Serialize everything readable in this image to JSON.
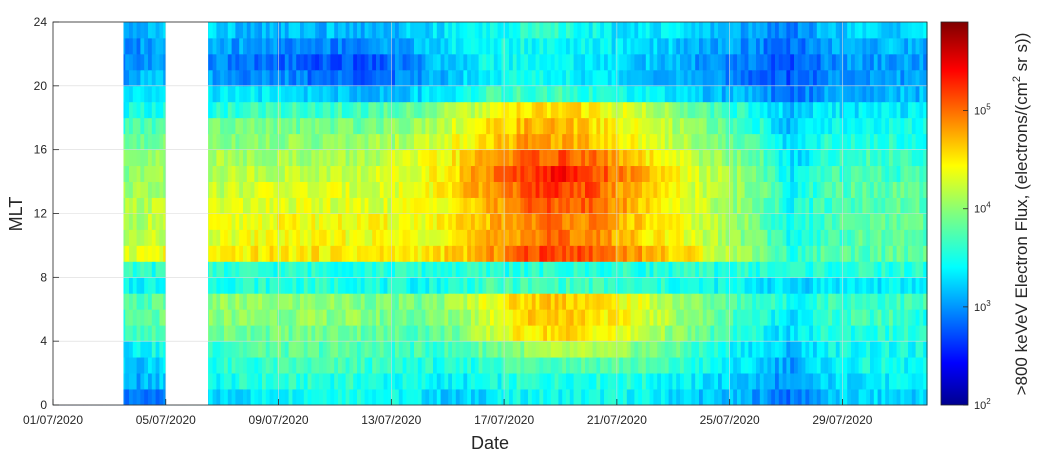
{
  "chart_data": {
    "type": "heatmap",
    "xlabel": "Date",
    "ylabel": "MLT",
    "colorbar_label": ">800 keVeV Electron Flux, (electrons/(cm",
    "colorbar_label_sup": "2",
    "colorbar_label_end": " sr s))",
    "colorscale": "jet",
    "log_color_scale": true,
    "clim": [
      100,
      800000
    ],
    "colorbar_ticks": [
      {
        "base": "10",
        "exp": "2",
        "value": 100
      },
      {
        "base": "10",
        "exp": "3",
        "value": 1000
      },
      {
        "base": "10",
        "exp": "4",
        "value": 10000
      },
      {
        "base": "10",
        "exp": "5",
        "value": 100000
      }
    ],
    "x_start_day": 1,
    "x_end_day": 32,
    "xlim_days": [
      1,
      32
    ],
    "x_ticks": [
      {
        "label": "01/07/2020",
        "day": 1
      },
      {
        "label": "05/07/2020",
        "day": 5
      },
      {
        "label": "09/07/2020",
        "day": 9
      },
      {
        "label": "13/07/2020",
        "day": 13
      },
      {
        "label": "17/07/2020",
        "day": 17
      },
      {
        "label": "21/07/2020",
        "day": 21
      },
      {
        "label": "25/07/2020",
        "day": 25
      },
      {
        "label": "29/07/2020",
        "day": 29
      }
    ],
    "ylim": [
      0,
      24
    ],
    "y_ticks": [
      {
        "label": "0",
        "value": 0
      },
      {
        "label": "4",
        "value": 4
      },
      {
        "label": "8",
        "value": 8
      },
      {
        "label": "12",
        "value": 12
      },
      {
        "label": "16",
        "value": 16
      },
      {
        "label": "20",
        "value": 20
      },
      {
        "label": "24",
        "value": 24
      }
    ],
    "grid": true,
    "mlt_bins": 24,
    "mlt_rows": [
      {
        "mlt": 0.5,
        "log_flux": [
          2.8,
          2.8,
          2.9,
          3.0,
          3.2,
          3.3,
          3.4,
          3.5,
          3.6,
          3.6,
          3.5,
          3.4,
          3.2,
          3.4,
          3.5,
          3.5,
          3.5,
          3.5,
          3.4,
          3.3,
          3.2,
          3.1,
          2.9,
          3.2,
          3.3,
          3.3,
          3.3
        ]
      },
      {
        "mlt": 1.5,
        "log_flux": [
          2.9,
          3.0,
          3.1,
          3.2,
          3.4,
          3.5,
          3.6,
          3.6,
          3.6,
          3.6,
          3.5,
          3.5,
          3.4,
          3.5,
          3.6,
          3.6,
          3.6,
          3.6,
          3.5,
          3.4,
          3.3,
          3.2,
          3.0,
          3.3,
          3.4,
          3.4,
          3.4
        ]
      },
      {
        "mlt": 2.5,
        "log_flux": [
          3.0,
          3.1,
          3.2,
          3.3,
          3.5,
          3.6,
          3.6,
          3.7,
          3.7,
          3.7,
          3.6,
          3.6,
          3.5,
          3.7,
          3.8,
          3.8,
          3.8,
          3.8,
          3.7,
          3.6,
          3.4,
          3.3,
          3.1,
          3.4,
          3.5,
          3.5,
          3.4
        ]
      },
      {
        "mlt": 3.5,
        "log_flux": [
          3.2,
          3.3,
          3.4,
          3.5,
          3.6,
          3.7,
          3.8,
          3.8,
          3.8,
          3.8,
          3.7,
          3.7,
          3.7,
          3.9,
          4.0,
          4.1,
          4.1,
          4.0,
          3.9,
          3.7,
          3.5,
          3.4,
          3.2,
          3.5,
          3.5,
          3.5,
          3.5
        ]
      },
      {
        "mlt": 4.5,
        "log_flux": [
          3.4,
          3.5,
          3.6,
          3.7,
          3.8,
          3.9,
          3.9,
          3.9,
          3.9,
          3.9,
          3.8,
          3.8,
          3.9,
          4.2,
          4.5,
          4.6,
          4.5,
          4.3,
          4.1,
          3.9,
          3.7,
          3.5,
          3.3,
          3.6,
          3.6,
          3.6,
          3.6
        ]
      },
      {
        "mlt": 5.5,
        "log_flux": [
          3.5,
          3.6,
          3.7,
          3.8,
          3.9,
          4.0,
          4.0,
          4.0,
          4.0,
          4.0,
          3.9,
          3.9,
          4.0,
          4.3,
          4.6,
          4.7,
          4.6,
          4.4,
          4.2,
          4.0,
          3.8,
          3.6,
          3.4,
          3.6,
          3.7,
          3.7,
          3.6
        ]
      },
      {
        "mlt": 6.5,
        "log_flux": [
          3.6,
          3.7,
          3.7,
          3.8,
          3.9,
          4.0,
          4.0,
          4.0,
          4.0,
          4.0,
          3.9,
          3.9,
          4.1,
          4.4,
          4.6,
          4.7,
          4.6,
          4.4,
          4.2,
          4.0,
          3.8,
          3.7,
          3.5,
          3.7,
          3.7,
          3.7,
          3.7
        ]
      },
      {
        "mlt": 7.5,
        "log_flux": [
          3.4,
          3.4,
          3.4,
          3.5,
          3.5,
          3.6,
          3.6,
          3.6,
          3.6,
          3.6,
          3.5,
          3.5,
          3.6,
          3.7,
          3.7,
          3.7,
          3.7,
          3.6,
          3.6,
          3.5,
          3.5,
          3.4,
          3.3,
          3.4,
          3.4,
          3.4,
          3.4
        ]
      },
      {
        "mlt": 8.5,
        "log_flux": [
          3.6,
          3.6,
          3.6,
          3.6,
          3.6,
          3.6,
          3.6,
          3.6,
          3.6,
          3.6,
          3.6,
          3.6,
          3.6,
          3.6,
          3.6,
          3.6,
          3.6,
          3.6,
          3.6,
          3.6,
          3.6,
          3.6,
          3.6,
          3.6,
          3.6,
          3.6,
          3.6
        ]
      },
      {
        "mlt": 9.5,
        "log_flux": [
          4.6,
          4.4,
          4.3,
          4.4,
          4.4,
          4.4,
          4.5,
          4.5,
          4.5,
          4.5,
          4.5,
          4.5,
          4.6,
          4.8,
          5.1,
          5.2,
          5.1,
          4.9,
          4.7,
          4.5,
          4.2,
          4.0,
          3.6,
          3.8,
          3.8,
          3.8,
          3.8
        ]
      },
      {
        "mlt": 10.5,
        "log_flux": [
          4.0,
          4.0,
          4.1,
          4.2,
          4.3,
          4.3,
          4.4,
          4.4,
          4.4,
          4.4,
          4.4,
          4.4,
          4.5,
          4.7,
          4.9,
          5.0,
          4.9,
          4.7,
          4.5,
          4.3,
          4.1,
          3.9,
          3.5,
          3.7,
          3.8,
          3.8,
          3.8
        ]
      },
      {
        "mlt": 11.5,
        "log_flux": [
          3.9,
          4.0,
          4.1,
          4.2,
          4.3,
          4.3,
          4.4,
          4.4,
          4.4,
          4.4,
          4.4,
          4.4,
          4.5,
          4.7,
          4.9,
          5.0,
          4.9,
          4.7,
          4.5,
          4.3,
          4.1,
          3.9,
          3.5,
          3.7,
          3.8,
          3.8,
          3.8
        ]
      },
      {
        "mlt": 12.5,
        "log_flux": [
          3.9,
          4.0,
          4.1,
          4.2,
          4.2,
          4.3,
          4.3,
          4.3,
          4.3,
          4.3,
          4.3,
          4.4,
          4.5,
          4.7,
          5.0,
          5.1,
          5.0,
          4.8,
          4.5,
          4.3,
          4.1,
          3.9,
          3.5,
          3.7,
          3.8,
          3.8,
          3.8
        ]
      },
      {
        "mlt": 13.5,
        "log_flux": [
          3.9,
          4.0,
          4.1,
          4.1,
          4.2,
          4.2,
          4.3,
          4.3,
          4.3,
          4.3,
          4.3,
          4.4,
          4.6,
          4.8,
          5.1,
          5.2,
          5.1,
          4.8,
          4.5,
          4.3,
          4.1,
          3.9,
          3.5,
          3.7,
          3.8,
          3.8,
          3.8
        ]
      },
      {
        "mlt": 14.5,
        "log_flux": [
          3.8,
          3.9,
          4.0,
          4.1,
          4.1,
          4.2,
          4.2,
          4.2,
          4.2,
          4.2,
          4.3,
          4.4,
          4.6,
          4.9,
          5.2,
          5.4,
          5.2,
          4.9,
          4.6,
          4.3,
          4.1,
          3.9,
          3.4,
          3.7,
          3.7,
          3.7,
          3.7
        ]
      },
      {
        "mlt": 15.5,
        "log_flux": [
          3.8,
          3.8,
          3.9,
          4.0,
          4.1,
          4.1,
          4.1,
          4.1,
          4.1,
          4.1,
          4.2,
          4.3,
          4.5,
          4.8,
          5.0,
          5.1,
          5.0,
          4.7,
          4.4,
          4.2,
          4.0,
          3.8,
          3.3,
          3.6,
          3.7,
          3.7,
          3.7
        ]
      },
      {
        "mlt": 16.5,
        "log_flux": [
          3.7,
          3.8,
          3.8,
          3.9,
          4.0,
          4.0,
          4.0,
          4.0,
          4.0,
          4.0,
          4.1,
          4.2,
          4.4,
          4.6,
          4.8,
          4.8,
          4.7,
          4.5,
          4.3,
          4.1,
          3.9,
          3.7,
          3.3,
          3.6,
          3.6,
          3.6,
          3.6
        ]
      },
      {
        "mlt": 17.5,
        "log_flux": [
          3.6,
          3.7,
          3.7,
          3.8,
          3.9,
          3.9,
          3.9,
          3.9,
          3.9,
          3.9,
          4.0,
          4.1,
          4.3,
          4.5,
          4.7,
          4.7,
          4.6,
          4.4,
          4.2,
          4.0,
          3.8,
          3.6,
          3.2,
          3.5,
          3.5,
          3.5,
          3.5
        ]
      },
      {
        "mlt": 18.5,
        "log_flux": [
          3.3,
          3.4,
          3.5,
          3.5,
          3.6,
          3.6,
          3.7,
          3.7,
          3.7,
          3.7,
          3.8,
          3.9,
          4.1,
          4.3,
          4.5,
          4.6,
          4.5,
          4.3,
          4.1,
          3.9,
          3.7,
          3.5,
          3.2,
          3.4,
          3.4,
          3.4,
          3.4
        ]
      },
      {
        "mlt": 19.5,
        "log_flux": [
          3.1,
          3.2,
          3.3,
          3.3,
          3.4,
          3.4,
          3.4,
          3.3,
          3.3,
          3.2,
          3.2,
          3.3,
          3.5,
          3.7,
          3.7,
          3.7,
          3.6,
          3.5,
          3.4,
          3.3,
          3.2,
          3.1,
          2.9,
          3.1,
          3.2,
          3.2,
          3.2
        ]
      },
      {
        "mlt": 20.5,
        "log_flux": [
          2.9,
          3.0,
          3.1,
          3.2,
          3.2,
          3.1,
          3.0,
          3.0,
          2.9,
          2.9,
          2.9,
          3.1,
          3.3,
          3.5,
          3.5,
          3.5,
          3.4,
          3.3,
          3.2,
          3.1,
          3.0,
          2.9,
          2.8,
          3.0,
          3.1,
          3.1,
          3.1
        ]
      },
      {
        "mlt": 21.5,
        "log_flux": [
          2.8,
          2.9,
          3.0,
          3.1,
          3.1,
          3.0,
          2.9,
          2.9,
          2.8,
          2.8,
          2.9,
          3.1,
          3.3,
          3.5,
          3.5,
          3.5,
          3.4,
          3.3,
          3.2,
          3.1,
          3.0,
          2.9,
          2.8,
          3.0,
          3.1,
          3.1,
          3.1
        ]
      },
      {
        "mlt": 22.5,
        "log_flux": [
          2.8,
          2.9,
          3.0,
          3.1,
          3.2,
          3.1,
          3.1,
          3.0,
          3.0,
          3.0,
          3.1,
          3.2,
          3.4,
          3.5,
          3.5,
          3.5,
          3.4,
          3.4,
          3.3,
          3.2,
          3.1,
          3.0,
          2.9,
          3.1,
          3.2,
          3.2,
          3.2
        ]
      },
      {
        "mlt": 23.5,
        "log_flux": [
          2.9,
          3.0,
          3.1,
          3.2,
          3.3,
          3.3,
          3.2,
          3.2,
          3.2,
          3.2,
          3.2,
          3.3,
          3.4,
          3.5,
          3.6,
          3.6,
          3.5,
          3.4,
          3.4,
          3.3,
          3.2,
          3.1,
          3.0,
          3.2,
          3.3,
          3.3,
          3.3
        ]
      }
    ],
    "data_gaps": [
      {
        "mlt_range": [
          0,
          24
        ],
        "day_range": [
          1,
          3.5
        ]
      },
      {
        "mlt_range": [
          0,
          24
        ],
        "day_range": [
          5,
          6.5
        ]
      }
    ]
  }
}
